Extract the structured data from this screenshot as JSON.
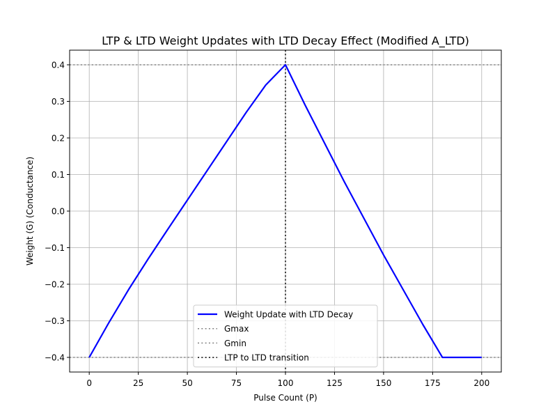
{
  "chart_data": {
    "type": "line",
    "title": "LTP & LTD Weight Updates with LTD Decay Effect (Modified A_LTD)",
    "xlabel": "Pulse Count (P)",
    "ylabel": "Weight (G) (Conductance)",
    "xlim": [
      -10,
      210
    ],
    "ylim": [
      -0.44,
      0.44
    ],
    "xticks": [
      0,
      25,
      50,
      75,
      100,
      125,
      150,
      175,
      200
    ],
    "xtick_labels": [
      "0",
      "25",
      "50",
      "75",
      "100",
      "125",
      "150",
      "175",
      "200"
    ],
    "yticks": [
      -0.4,
      -0.3,
      -0.2,
      -0.1,
      0.0,
      0.1,
      0.2,
      0.3,
      0.4
    ],
    "ytick_labels": [
      "−0.4",
      "−0.3",
      "−0.2",
      "−0.1",
      "0.0",
      "0.1",
      "0.2",
      "0.3",
      "0.4"
    ],
    "grid": true,
    "legend_position": "lower center",
    "series": [
      {
        "name": "Weight Update with LTD Decay",
        "color": "#0000ff",
        "style": "solid",
        "x": [
          0,
          10,
          20,
          30,
          40,
          50,
          60,
          70,
          80,
          90,
          100,
          110,
          120,
          130,
          140,
          150,
          160,
          170,
          180,
          190,
          200
        ],
        "y": [
          -0.4,
          -0.305,
          -0.215,
          -0.131,
          -0.05,
          0.03,
          0.11,
          0.19,
          0.27,
          0.345,
          0.4,
          0.29,
          0.185,
          0.08,
          -0.02,
          -0.12,
          -0.215,
          -0.31,
          -0.4,
          -0.4,
          -0.4
        ]
      }
    ],
    "reference_lines": [
      {
        "name": "Gmax",
        "orientation": "horizontal",
        "value": 0.4,
        "color": "#808080",
        "style": "dotted"
      },
      {
        "name": "Gmin",
        "orientation": "horizontal",
        "value": -0.4,
        "color": "#808080",
        "style": "dotted"
      },
      {
        "name": "LTP to LTD transition",
        "orientation": "vertical",
        "value": 100,
        "color": "#000000",
        "style": "dotted"
      }
    ]
  }
}
